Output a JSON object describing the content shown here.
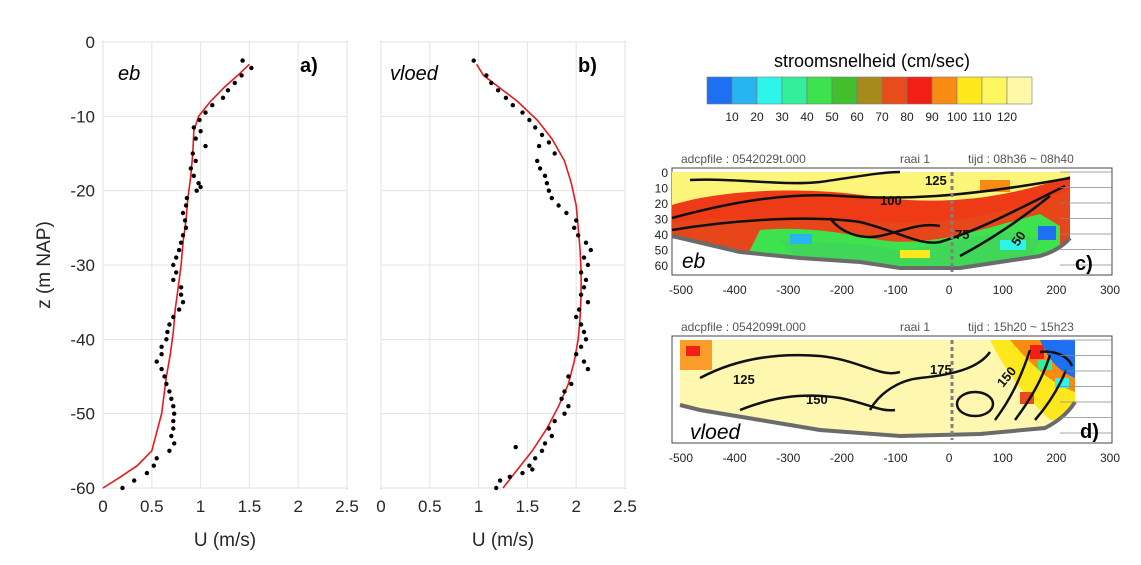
{
  "profiles": {
    "ylabel": "z (m NAP)",
    "xlabel": "U (m/s)",
    "x_ticks": [
      "0",
      "0.5",
      "1",
      "1.5",
      "2",
      "2.5"
    ],
    "y_ticks": [
      "0",
      "-10",
      "-20",
      "-30",
      "-40",
      "-50",
      "-60"
    ]
  },
  "colorbar": {
    "title": "stroomsnelheid (cm/sec)",
    "colors": [
      "#1e6ff2",
      "#27b5f0",
      "#2ef5ea",
      "#33ee9a",
      "#3ee24f",
      "#41bf2d",
      "#a68a1b",
      "#e74c1a",
      "#f11f14",
      "#f88c12",
      "#fde81d",
      "#fdf75f",
      "#fdf9a6"
    ],
    "labels": [
      "10",
      "20",
      "30",
      "40",
      "50",
      "60",
      "70",
      "80",
      "90",
      "100",
      "110",
      "120"
    ]
  },
  "chart_data": [
    {
      "type": "scatter",
      "panel": "a)",
      "annotation": "eb",
      "xlabel": "U (m/s)",
      "ylabel": "z (m NAP)",
      "xlim": [
        0,
        2.5
      ],
      "ylim": [
        -60,
        0
      ],
      "grid": true,
      "series": [
        {
          "kind": "points",
          "x": [
            1.43,
            1.52,
            1.42,
            1.35,
            1.28,
            1.23,
            1.12,
            1.05,
            0.99,
            0.93,
            1.0,
            0.95,
            1.05,
            0.92,
            0.95,
            0.9,
            0.93,
            0.98,
            1.0,
            0.96,
            0.86,
            0.85,
            0.82,
            0.84,
            0.85,
            0.82,
            0.8,
            0.78,
            0.75,
            0.72,
            0.75,
            0.72,
            0.8,
            0.8,
            0.82,
            0.78,
            0.72,
            0.68,
            0.66,
            0.65,
            0.6,
            0.6,
            0.55,
            0.6,
            0.63,
            0.65,
            0.68,
            0.7,
            0.72,
            0.73,
            0.72,
            0.72,
            0.7,
            0.73,
            0.68,
            0.55,
            0.52,
            0.45,
            0.32,
            0.2,
            0.12
          ],
          "y": [
            -2.5,
            -3.5,
            -4.5,
            -5.5,
            -6.5,
            -7.5,
            -8.5,
            -9.5,
            -10.5,
            -11.5,
            -12,
            -13,
            -14,
            -15,
            -16,
            -17,
            -18,
            -19,
            -19.5,
            -20,
            -21,
            -22,
            -23,
            -24,
            -25,
            -26,
            -27,
            -28,
            -29,
            -30,
            -31,
            -32,
            -33,
            -34,
            -35,
            -36,
            -37,
            -38,
            -39,
            -40,
            -41,
            -42,
            -43,
            -44,
            -45,
            -46,
            -47,
            -48,
            -49,
            -50,
            -51,
            -52,
            -53,
            -54,
            -55,
            -56,
            -57,
            -58,
            -59,
            -60,
            -61
          ]
        },
        {
          "kind": "fit",
          "x": [
            1.5,
            1.38,
            1.25,
            1.1,
            0.98,
            0.93,
            0.92,
            0.9,
            0.87,
            0.85,
            0.82,
            0.8,
            0.77,
            0.74,
            0.72,
            0.69,
            0.65,
            0.6,
            0.5,
            0.35,
            0.18,
            0.0
          ],
          "y": [
            -3,
            -4.5,
            -6,
            -8,
            -10,
            -12,
            -15,
            -18,
            -21,
            -24,
            -27,
            -30,
            -33,
            -36,
            -39,
            -42,
            -45,
            -50,
            -55,
            -57,
            -58.5,
            -60
          ]
        }
      ]
    },
    {
      "type": "scatter",
      "panel": "b)",
      "annotation": "vloed",
      "xlabel": "U (m/s)",
      "xlim": [
        0,
        2.5
      ],
      "ylim": [
        -60,
        0
      ],
      "grid": true,
      "series": [
        {
          "kind": "points",
          "x": [
            0.95,
            1.08,
            1.13,
            1.2,
            1.28,
            1.35,
            1.45,
            1.52,
            1.58,
            1.65,
            1.72,
            1.62,
            1.78,
            1.6,
            1.63,
            1.68,
            1.7,
            1.72,
            1.75,
            1.82,
            1.9,
            2.0,
            1.98,
            2.02,
            2.1,
            2.15,
            2.08,
            2.12,
            2.05,
            2.1,
            2.08,
            2.05,
            2.12,
            2.03,
            2.0,
            2.05,
            2.08,
            2.1,
            2.05,
            2.0,
            2.08,
            2.12,
            1.92,
            1.95,
            1.88,
            1.85,
            1.92,
            1.88,
            1.78,
            1.72,
            1.75,
            1.68,
            1.65,
            1.58,
            1.52,
            1.38,
            1.55,
            1.45,
            1.32,
            1.22,
            1.18
          ],
          "y": [
            -2.5,
            -4.5,
            -5.5,
            -6.5,
            -7.5,
            -8.5,
            -9.5,
            -10.5,
            -11.5,
            -12.5,
            -13.5,
            -14,
            -15,
            -16,
            -17,
            -18,
            -19,
            -20,
            -21,
            -22,
            -23,
            -24,
            -25,
            -26,
            -27,
            -28,
            -29,
            -30,
            -31,
            -32,
            -33,
            -34,
            -35,
            -36,
            -37,
            -38,
            -39,
            -40,
            -41,
            -42,
            -43,
            -44,
            -45,
            -46,
            -47,
            -48,
            -49,
            -50,
            -51,
            -52,
            -53,
            -54,
            -55,
            -56,
            -57,
            -54.5,
            -57.5,
            -58,
            -58.5,
            -59,
            -60
          ]
        },
        {
          "kind": "fit",
          "x": [
            0.98,
            1.05,
            1.2,
            1.4,
            1.6,
            1.75,
            1.88,
            1.95,
            2.0,
            2.02,
            2.04,
            2.05,
            2.05,
            2.04,
            2.02,
            1.98,
            1.92,
            1.82,
            1.7,
            1.55,
            1.4,
            1.25
          ],
          "y": [
            -3,
            -4.5,
            -6,
            -8,
            -10.5,
            -13,
            -16,
            -19,
            -22,
            -25,
            -28,
            -31,
            -34,
            -37,
            -40,
            -43,
            -46,
            -49,
            -52,
            -55,
            -57.5,
            -60
          ]
        }
      ]
    },
    {
      "type": "heatmap",
      "panel": "c)",
      "annotation": "eb",
      "header": {
        "file": "adcpfile : 0542029t.000",
        "raai": "raai 1",
        "time": "tijd : 08h36 ~ 08h40"
      },
      "x_ticks": [
        "-500",
        "-400",
        "-300",
        "-200",
        "-100",
        "0",
        "100",
        "200",
        "300"
      ],
      "y_ticks": [
        "0",
        "10",
        "20",
        "30",
        "40",
        "50",
        "60"
      ],
      "contour_labels": [
        "125",
        "100",
        "75",
        "50"
      ]
    },
    {
      "type": "heatmap",
      "panel": "d)",
      "annotation": "vloed",
      "header": {
        "file": "adcpfile : 0542099t.000",
        "raai": "raai 1",
        "time": "tijd : 15h20 ~ 15h23"
      },
      "x_ticks": [
        "-500",
        "-400",
        "-300",
        "-200",
        "-100",
        "0",
        "100",
        "200",
        "300"
      ],
      "contour_labels": [
        "125",
        "150",
        "175",
        "150"
      ]
    }
  ]
}
